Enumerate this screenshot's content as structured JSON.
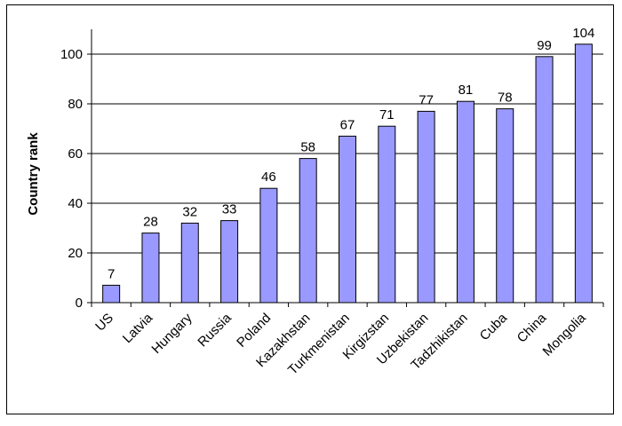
{
  "chart_data": {
    "type": "bar",
    "title": "",
    "xlabel": "",
    "ylabel": "Country rank",
    "ylim": [
      0,
      110
    ],
    "yticks": [
      0,
      20,
      40,
      60,
      80,
      100
    ],
    "grid": true,
    "legend": "none",
    "categories": [
      "US",
      "Latvia",
      "Hungary",
      "Russia",
      "Poland",
      "Kazakhstan",
      "Turkmenistan",
      "Kirgizstan",
      "Uzbekistan",
      "Tadzhikistan",
      "Cuba",
      "China",
      "Mongolia"
    ],
    "values": [
      7,
      28,
      32,
      33,
      46,
      58,
      67,
      71,
      77,
      81,
      78,
      99,
      104
    ],
    "bar_color": "#9999ff",
    "bar_edge_color": "#000000"
  }
}
